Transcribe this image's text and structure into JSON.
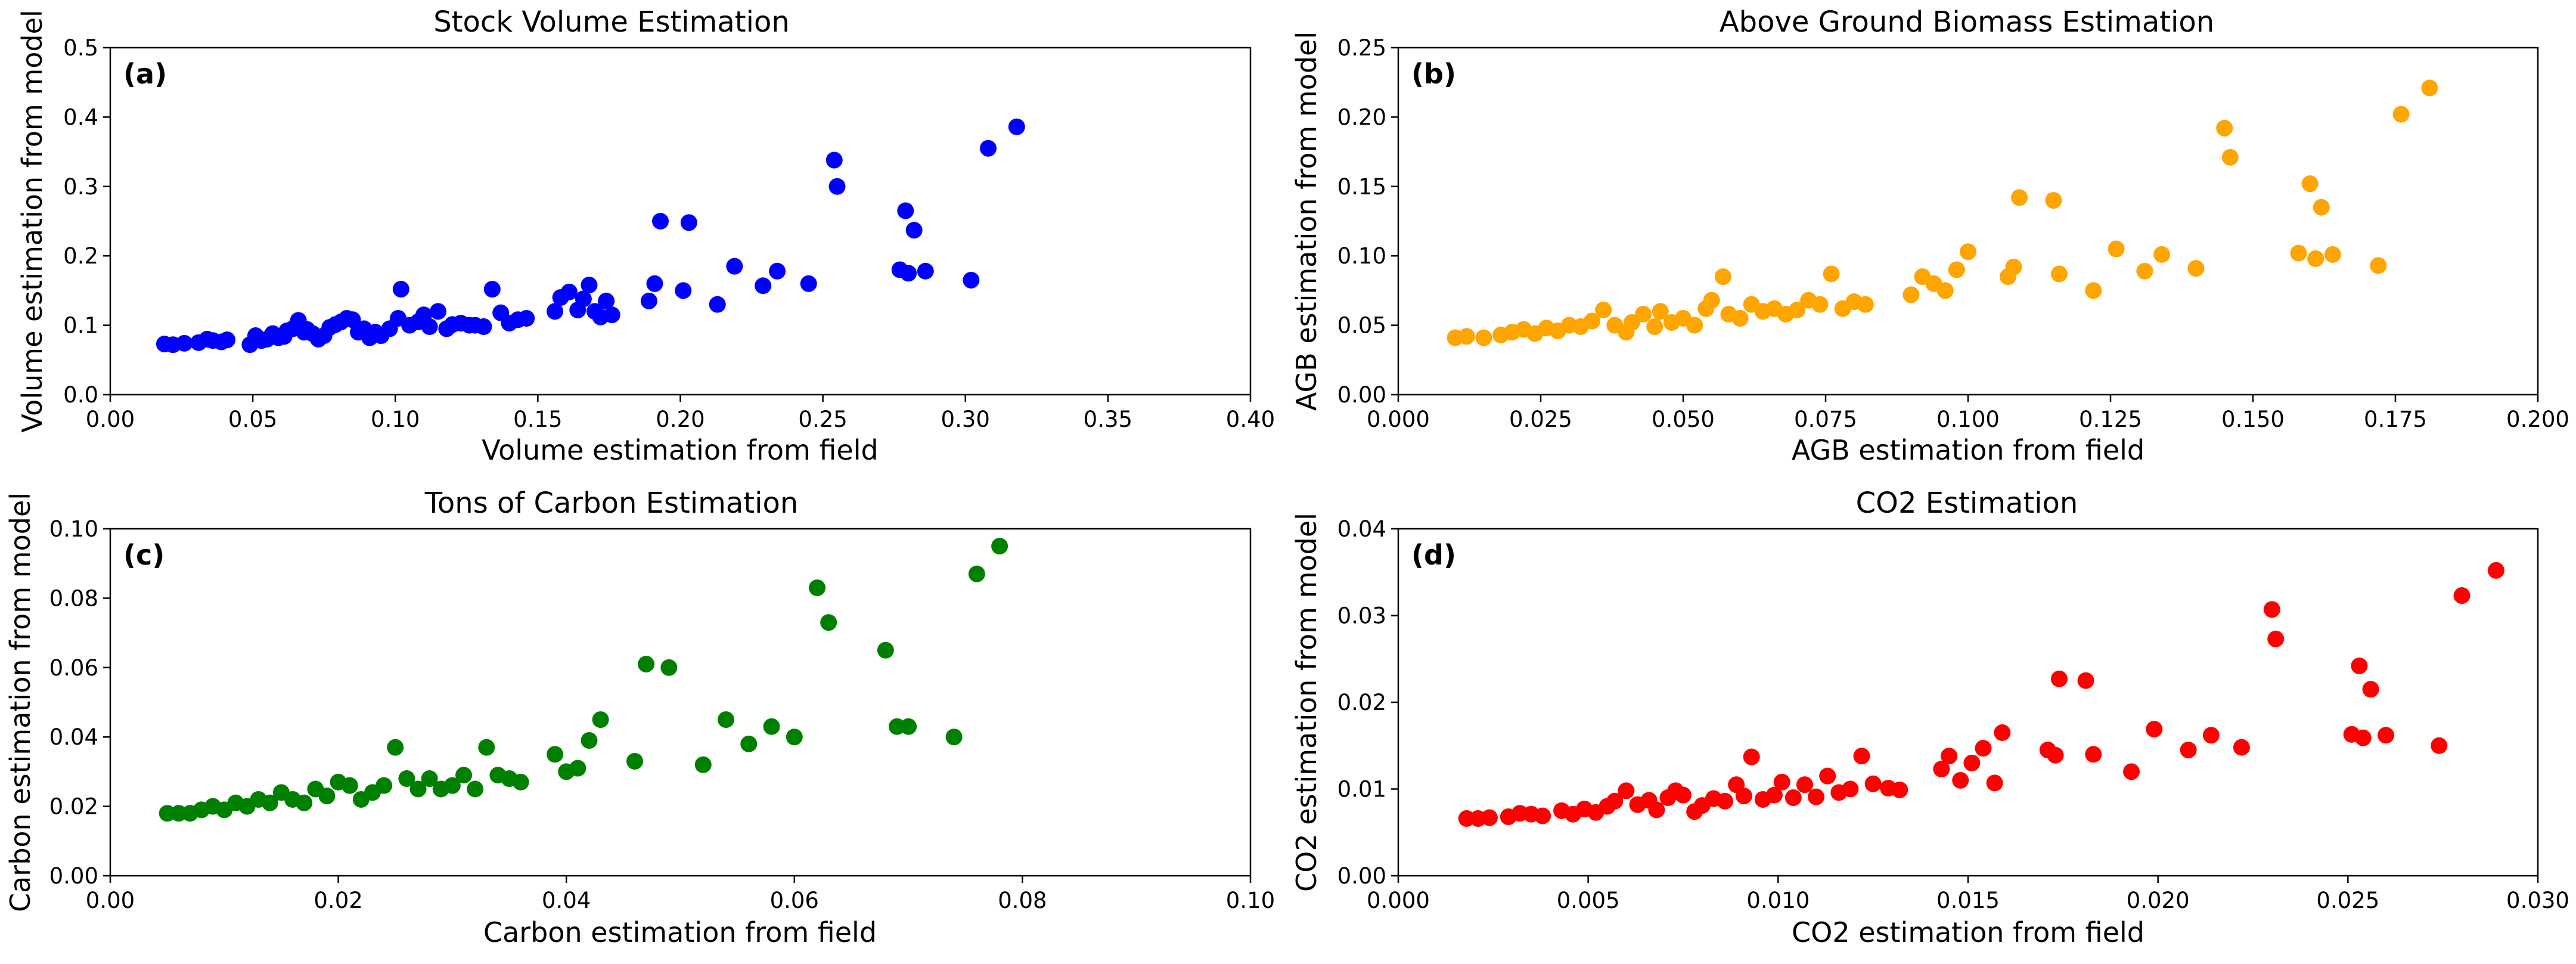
{
  "chart_data": [
    {
      "type": "scatter",
      "panel_label": "(a)",
      "title": "Stock Volume Estimation",
      "xlabel": "Volume estimation from field",
      "ylabel": "Volume estimation from model",
      "xlim": [
        0,
        0.4
      ],
      "ylim": [
        0,
        0.5
      ],
      "xticks": [
        "0.00",
        "0.05",
        "0.10",
        "0.15",
        "0.20",
        "0.25",
        "0.30",
        "0.35",
        "0.40"
      ],
      "yticks": [
        "0.0",
        "0.1",
        "0.2",
        "0.3",
        "0.4",
        "0.5"
      ],
      "color": "#0000ff",
      "series": [
        {
          "name": "volume",
          "x": [
            0.019,
            0.022,
            0.026,
            0.031,
            0.034,
            0.036,
            0.039,
            0.041,
            0.049,
            0.051,
            0.053,
            0.055,
            0.057,
            0.059,
            0.061,
            0.062,
            0.064,
            0.066,
            0.068,
            0.069,
            0.071,
            0.073,
            0.075,
            0.077,
            0.079,
            0.081,
            0.083,
            0.085,
            0.087,
            0.089,
            0.091,
            0.093,
            0.095,
            0.098,
            0.101,
            0.102,
            0.105,
            0.108,
            0.11,
            0.112,
            0.115,
            0.118,
            0.12,
            0.123,
            0.126,
            0.128,
            0.131,
            0.134,
            0.137,
            0.14,
            0.143,
            0.146,
            0.156,
            0.158,
            0.161,
            0.164,
            0.166,
            0.168,
            0.17,
            0.172,
            0.174,
            0.176,
            0.189,
            0.191,
            0.193,
            0.201,
            0.203,
            0.213,
            0.219,
            0.229,
            0.234,
            0.245,
            0.254,
            0.255,
            0.277,
            0.279,
            0.28,
            0.282,
            0.286,
            0.302,
            0.308,
            0.318
          ],
          "y": [
            0.073,
            0.072,
            0.074,
            0.075,
            0.08,
            0.078,
            0.076,
            0.079,
            0.072,
            0.085,
            0.078,
            0.08,
            0.088,
            0.082,
            0.084,
            0.092,
            0.095,
            0.107,
            0.09,
            0.094,
            0.088,
            0.08,
            0.085,
            0.097,
            0.101,
            0.105,
            0.11,
            0.108,
            0.09,
            0.095,
            0.082,
            0.09,
            0.085,
            0.095,
            0.11,
            0.152,
            0.1,
            0.105,
            0.115,
            0.098,
            0.12,
            0.095,
            0.101,
            0.103,
            0.1,
            0.1,
            0.098,
            0.152,
            0.118,
            0.103,
            0.108,
            0.11,
            0.12,
            0.14,
            0.148,
            0.122,
            0.138,
            0.158,
            0.12,
            0.112,
            0.135,
            0.115,
            0.135,
            0.16,
            0.25,
            0.15,
            0.248,
            0.13,
            0.185,
            0.157,
            0.178,
            0.16,
            0.338,
            0.3,
            0.18,
            0.265,
            0.175,
            0.237,
            0.178,
            0.165,
            0.355,
            0.386
          ]
        }
      ]
    },
    {
      "type": "scatter",
      "panel_label": "(b)",
      "title": "Above Ground Biomass Estimation",
      "xlabel": "AGB estimation from field",
      "ylabel": "AGB estimation from model",
      "xlim": [
        0,
        0.2
      ],
      "ylim": [
        0,
        0.25
      ],
      "xticks": [
        "0.000",
        "0.025",
        "0.050",
        "0.075",
        "0.100",
        "0.125",
        "0.150",
        "0.175",
        "0.200"
      ],
      "yticks": [
        "0.00",
        "0.05",
        "0.10",
        "0.15",
        "0.20",
        "0.25"
      ],
      "color": "#ffa500",
      "series": [
        {
          "name": "agb",
          "x": [
            0.01,
            0.012,
            0.015,
            0.018,
            0.02,
            0.022,
            0.024,
            0.026,
            0.028,
            0.03,
            0.032,
            0.034,
            0.036,
            0.038,
            0.04,
            0.041,
            0.043,
            0.045,
            0.046,
            0.048,
            0.05,
            0.052,
            0.054,
            0.055,
            0.057,
            0.058,
            0.06,
            0.062,
            0.064,
            0.066,
            0.068,
            0.07,
            0.072,
            0.074,
            0.076,
            0.078,
            0.08,
            0.082,
            0.09,
            0.092,
            0.094,
            0.096,
            0.098,
            0.1,
            0.107,
            0.108,
            0.109,
            0.115,
            0.116,
            0.122,
            0.126,
            0.131,
            0.134,
            0.14,
            0.145,
            0.146,
            0.158,
            0.16,
            0.161,
            0.162,
            0.164,
            0.172,
            0.176,
            0.181
          ],
          "y": [
            0.041,
            0.042,
            0.041,
            0.043,
            0.045,
            0.047,
            0.044,
            0.048,
            0.046,
            0.05,
            0.049,
            0.053,
            0.061,
            0.05,
            0.045,
            0.052,
            0.058,
            0.049,
            0.06,
            0.052,
            0.055,
            0.05,
            0.062,
            0.068,
            0.085,
            0.058,
            0.055,
            0.065,
            0.06,
            0.062,
            0.058,
            0.061,
            0.068,
            0.065,
            0.087,
            0.062,
            0.067,
            0.065,
            0.072,
            0.085,
            0.08,
            0.075,
            0.09,
            0.103,
            0.085,
            0.092,
            0.142,
            0.14,
            0.087,
            0.075,
            0.105,
            0.089,
            0.101,
            0.091,
            0.192,
            0.171,
            0.102,
            0.152,
            0.098,
            0.135,
            0.101,
            0.093,
            0.202,
            0.221
          ]
        }
      ]
    },
    {
      "type": "scatter",
      "panel_label": "(c)",
      "title": "Tons of Carbon Estimation",
      "xlabel": "Carbon estimation from field",
      "ylabel": "Carbon estimation from model",
      "xlim": [
        0,
        0.1
      ],
      "ylim": [
        0,
        0.1
      ],
      "xticks": [
        "0.00",
        "0.02",
        "0.04",
        "0.06",
        "0.08",
        "0.10"
      ],
      "yticks": [
        "0.00",
        "0.02",
        "0.04",
        "0.06",
        "0.08",
        "0.10"
      ],
      "color": "#008000",
      "series": [
        {
          "name": "carbon",
          "x": [
            0.005,
            0.006,
            0.007,
            0.008,
            0.009,
            0.01,
            0.011,
            0.012,
            0.013,
            0.014,
            0.015,
            0.016,
            0.017,
            0.018,
            0.019,
            0.02,
            0.021,
            0.022,
            0.023,
            0.024,
            0.025,
            0.026,
            0.027,
            0.028,
            0.029,
            0.03,
            0.031,
            0.032,
            0.033,
            0.034,
            0.035,
            0.036,
            0.039,
            0.04,
            0.041,
            0.042,
            0.043,
            0.046,
            0.047,
            0.049,
            0.052,
            0.054,
            0.056,
            0.058,
            0.06,
            0.062,
            0.063,
            0.068,
            0.069,
            0.07,
            0.074,
            0.076,
            0.078
          ],
          "y": [
            0.018,
            0.018,
            0.018,
            0.019,
            0.02,
            0.019,
            0.021,
            0.02,
            0.022,
            0.021,
            0.024,
            0.022,
            0.021,
            0.025,
            0.023,
            0.027,
            0.026,
            0.022,
            0.024,
            0.026,
            0.037,
            0.028,
            0.025,
            0.028,
            0.025,
            0.026,
            0.029,
            0.025,
            0.037,
            0.029,
            0.028,
            0.027,
            0.035,
            0.03,
            0.031,
            0.039,
            0.045,
            0.033,
            0.061,
            0.06,
            0.032,
            0.045,
            0.038,
            0.043,
            0.04,
            0.083,
            0.073,
            0.065,
            0.043,
            0.043,
            0.04,
            0.087,
            0.095
          ]
        }
      ]
    },
    {
      "type": "scatter",
      "panel_label": "(d)",
      "title": "CO2 Estimation",
      "xlabel": "CO2 estimation from field",
      "ylabel": "CO2 estimation from model",
      "xlim": [
        0,
        0.03
      ],
      "ylim": [
        0,
        0.04
      ],
      "xticks": [
        "0.000",
        "0.005",
        "0.010",
        "0.015",
        "0.020",
        "0.025",
        "0.030"
      ],
      "yticks": [
        "0.00",
        "0.01",
        "0.02",
        "0.03",
        "0.04"
      ],
      "color": "#ff0000",
      "series": [
        {
          "name": "co2",
          "x": [
            0.0018,
            0.0021,
            0.0024,
            0.0029,
            0.0032,
            0.0035,
            0.0038,
            0.0043,
            0.0046,
            0.0049,
            0.0052,
            0.0055,
            0.0057,
            0.006,
            0.0063,
            0.0066,
            0.0068,
            0.0071,
            0.0073,
            0.0075,
            0.0078,
            0.008,
            0.0083,
            0.0086,
            0.0089,
            0.0091,
            0.0093,
            0.0096,
            0.0099,
            0.0101,
            0.0104,
            0.0107,
            0.011,
            0.0113,
            0.0116,
            0.0119,
            0.0122,
            0.0125,
            0.0129,
            0.0132,
            0.0143,
            0.0145,
            0.0148,
            0.0151,
            0.0154,
            0.0157,
            0.0159,
            0.0171,
            0.0173,
            0.0174,
            0.0181,
            0.0183,
            0.0193,
            0.0199,
            0.0208,
            0.0214,
            0.0222,
            0.023,
            0.0231,
            0.0251,
            0.0253,
            0.0254,
            0.0256,
            0.026,
            0.0274,
            0.028,
            0.0289
          ],
          "y": [
            0.0066,
            0.0066,
            0.0067,
            0.0068,
            0.0072,
            0.0071,
            0.0069,
            0.0075,
            0.0071,
            0.0077,
            0.0073,
            0.008,
            0.0086,
            0.0098,
            0.0082,
            0.0087,
            0.0076,
            0.009,
            0.0098,
            0.0093,
            0.0074,
            0.0081,
            0.0089,
            0.0086,
            0.0105,
            0.0092,
            0.0137,
            0.0088,
            0.0093,
            0.0108,
            0.009,
            0.0105,
            0.0091,
            0.0115,
            0.0096,
            0.01,
            0.0138,
            0.0106,
            0.0101,
            0.0099,
            0.0123,
            0.0138,
            0.011,
            0.013,
            0.0147,
            0.0107,
            0.0165,
            0.0145,
            0.0139,
            0.0227,
            0.0225,
            0.014,
            0.012,
            0.0169,
            0.0145,
            0.0162,
            0.0148,
            0.0307,
            0.0273,
            0.0163,
            0.0242,
            0.0159,
            0.0215,
            0.0162,
            0.015,
            0.0323,
            0.0352
          ]
        }
      ]
    }
  ]
}
